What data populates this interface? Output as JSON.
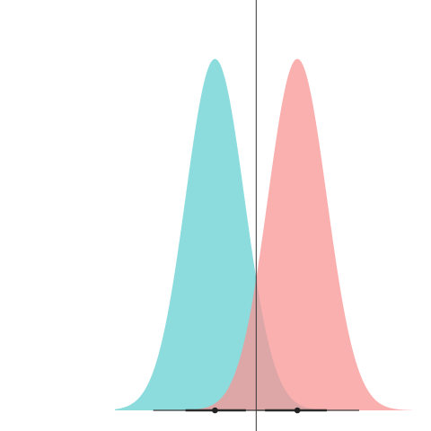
{
  "chart_data": {
    "type": "area",
    "title": "",
    "xlabel": "",
    "ylabel": "",
    "xlim": [
      -4.8,
      5.3
    ],
    "ylim": [
      0,
      1.05
    ],
    "grid": false,
    "legend": "none",
    "reference_line_x": 0,
    "series": [
      {
        "color": "#6fd3d4",
        "opacity": 0.8,
        "mean": -1.4,
        "sd": 1.0,
        "interval_thin": [
          -3.5,
          0.7
        ],
        "interval_thick": [
          -2.4,
          -0.35
        ],
        "point": -1.4
      },
      {
        "color": "#f89594",
        "opacity": 0.75,
        "mean": 1.4,
        "sd": 1.0,
        "interval_thin": [
          0.0,
          3.5
        ],
        "interval_thick": [
          0.3,
          2.4
        ],
        "point": 1.4
      }
    ]
  }
}
